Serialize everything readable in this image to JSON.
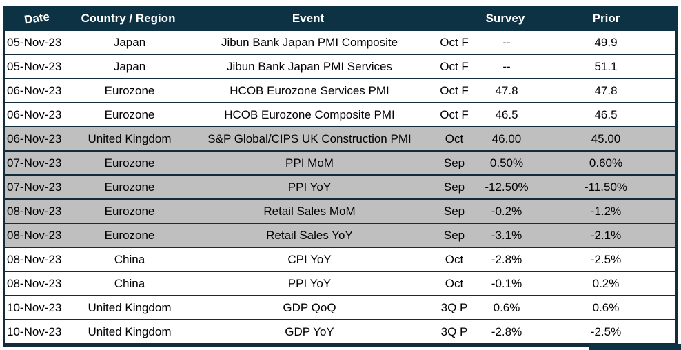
{
  "table": {
    "headers": {
      "date": "Date",
      "country": "Country / Region",
      "event": "Event",
      "period": "",
      "survey": "Survey",
      "prior": "Prior"
    },
    "rows": [
      {
        "date": "05-Nov-23",
        "country": "Japan",
        "event": "Jibun Bank Japan PMI Composite",
        "period": "Oct F",
        "survey": "--",
        "prior": "49.9",
        "shaded": false
      },
      {
        "date": "05-Nov-23",
        "country": "Japan",
        "event": "Jibun Bank Japan PMI Services",
        "period": "Oct F",
        "survey": "--",
        "prior": "51.1",
        "shaded": false
      },
      {
        "date": "06-Nov-23",
        "country": "Eurozone",
        "event": "HCOB Eurozone Services PMI",
        "period": "Oct F",
        "survey": "47.8",
        "prior": "47.8",
        "shaded": false
      },
      {
        "date": "06-Nov-23",
        "country": "Eurozone",
        "event": "HCOB Eurozone Composite PMI",
        "period": "Oct F",
        "survey": "46.5",
        "prior": "46.5",
        "shaded": false
      },
      {
        "date": "06-Nov-23",
        "country": "United Kingdom",
        "event": "S&P Global/CIPS UK Construction PMI",
        "period": "Oct",
        "survey": "46.00",
        "prior": "45.00",
        "shaded": true
      },
      {
        "date": "07-Nov-23",
        "country": "Eurozone",
        "event": "PPI MoM",
        "period": "Sep",
        "survey": "0.50%",
        "prior": "0.60%",
        "shaded": true
      },
      {
        "date": "07-Nov-23",
        "country": "Eurozone",
        "event": "PPI YoY",
        "period": "Sep",
        "survey": "-12.50%",
        "prior": "-11.50%",
        "shaded": true
      },
      {
        "date": "08-Nov-23",
        "country": "Eurozone",
        "event": "Retail Sales MoM",
        "period": "Sep",
        "survey": "-0.2%",
        "prior": "-1.2%",
        "shaded": true
      },
      {
        "date": "08-Nov-23",
        "country": "Eurozone",
        "event": "Retail Sales YoY",
        "period": "Sep",
        "survey": "-3.1%",
        "prior": "-2.1%",
        "shaded": true
      },
      {
        "date": "08-Nov-23",
        "country": "China",
        "event": "CPI YoY",
        "period": "Oct",
        "survey": "-2.8%",
        "prior": "-2.5%",
        "shaded": false
      },
      {
        "date": "08-Nov-23",
        "country": "China",
        "event": "PPI YoY",
        "period": "Oct",
        "survey": "-0.1%",
        "prior": "0.2%",
        "shaded": false
      },
      {
        "date": "10-Nov-23",
        "country": "United Kingdom",
        "event": "GDP QoQ",
        "period": "3Q P",
        "survey": "0.6%",
        "prior": "0.6%",
        "shaded": false
      },
      {
        "date": "10-Nov-23",
        "country": "United Kingdom",
        "event": "GDP YoY",
        "period": "3Q P",
        "survey": "-2.8%",
        "prior": "-2.5%",
        "shaded": false
      }
    ]
  },
  "colors": {
    "header_bg": "#0d3244",
    "header_text": "#ffffff",
    "shaded_row_bg": "#bfbfbf",
    "row_bg": "#ffffff",
    "border": "#142b3b",
    "text": "#000000"
  }
}
